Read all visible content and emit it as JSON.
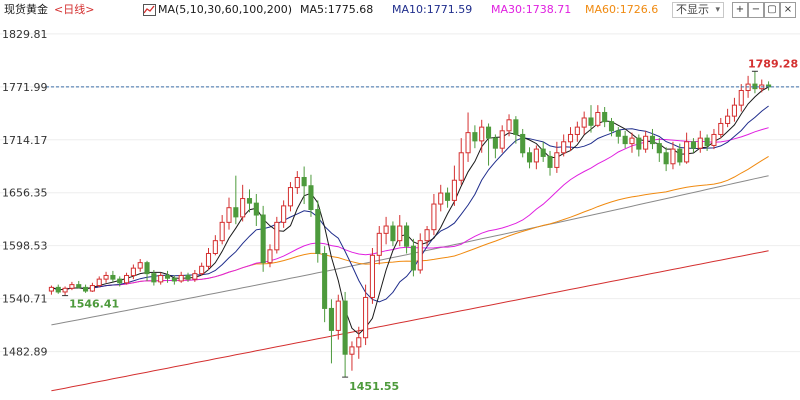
{
  "header": {
    "instrument": "现货黄金",
    "period": "<日线>",
    "ma_params": "MA(5,10,30,60,100,200)",
    "ma_values": [
      {
        "label": "MA5:1775.68",
        "color": "#1a1a1a"
      },
      {
        "label": "MA10:1771.59",
        "color": "#1f2d8c"
      },
      {
        "label": "MA30:1738.71",
        "color": "#e020e0"
      },
      {
        "label": "MA60:1726.6",
        "color": "#f08a10"
      }
    ],
    "hide_dropdown_label": "不显示",
    "hide_dropdown_arrow": "▾",
    "buttons": [
      "+",
      "−",
      "▢",
      "×"
    ]
  },
  "chart_data": {
    "type": "candlestick",
    "ylim": [
      1430,
      1845
    ],
    "y_ticks": [
      "1829.81",
      "1771.99",
      "1714.17",
      "1656.35",
      "1598.53",
      "1540.71",
      "1482.89"
    ],
    "current_price_line": 1771.99,
    "annotations": [
      {
        "text": "1789.28",
        "type": "high",
        "color": "#d43030"
      },
      {
        "text": "1546.41",
        "type": "low",
        "color": "#4d9a3c"
      },
      {
        "text": "1451.55",
        "type": "low",
        "color": "#4d9a3c"
      }
    ],
    "colors": {
      "up": "#d43030",
      "down": "#4d9a3c",
      "ma5": "#1a1a1a",
      "ma10": "#1f2d8c",
      "ma30": "#e020e0",
      "ma60": "#f08a10",
      "ma100": "#8a8a8a",
      "ma200": "#d43030"
    },
    "candles": [
      [
        1549,
        1553,
        1545,
        1555
      ],
      [
        1553,
        1548,
        1546,
        1556
      ],
      [
        1548,
        1552,
        1544,
        1554
      ],
      [
        1552,
        1556,
        1550,
        1559
      ],
      [
        1556,
        1553,
        1552,
        1560
      ],
      [
        1553,
        1549,
        1547,
        1556
      ],
      [
        1549,
        1555,
        1548,
        1558
      ],
      [
        1555,
        1562,
        1553,
        1565
      ],
      [
        1562,
        1566,
        1558,
        1570
      ],
      [
        1566,
        1562,
        1559,
        1571
      ],
      [
        1562,
        1558,
        1554,
        1565
      ],
      [
        1558,
        1566,
        1556,
        1569
      ],
      [
        1566,
        1574,
        1562,
        1578
      ],
      [
        1574,
        1580,
        1570,
        1584
      ],
      [
        1580,
        1568,
        1560,
        1582
      ],
      [
        1568,
        1559,
        1555,
        1572
      ],
      [
        1559,
        1566,
        1556,
        1569
      ],
      [
        1566,
        1563,
        1558,
        1571
      ],
      [
        1563,
        1560,
        1556,
        1566
      ],
      [
        1560,
        1566,
        1558,
        1570
      ],
      [
        1566,
        1562,
        1559,
        1569
      ],
      [
        1562,
        1568,
        1559,
        1572
      ],
      [
        1568,
        1576,
        1566,
        1580
      ],
      [
        1576,
        1590,
        1572,
        1596
      ],
      [
        1590,
        1604,
        1588,
        1610
      ],
      [
        1604,
        1624,
        1600,
        1632
      ],
      [
        1624,
        1640,
        1616,
        1651
      ],
      [
        1640,
        1630,
        1622,
        1675
      ],
      [
        1630,
        1650,
        1625,
        1665
      ],
      [
        1650,
        1645,
        1635,
        1660
      ],
      [
        1645,
        1632,
        1620,
        1655
      ],
      [
        1632,
        1580,
        1570,
        1642
      ],
      [
        1580,
        1594,
        1575,
        1600
      ],
      [
        1594,
        1624,
        1590,
        1630
      ],
      [
        1624,
        1642,
        1618,
        1648
      ],
      [
        1642,
        1662,
        1636,
        1668
      ],
      [
        1662,
        1673,
        1655,
        1680
      ],
      [
        1673,
        1664,
        1644,
        1685
      ],
      [
        1664,
        1638,
        1630,
        1676
      ],
      [
        1638,
        1590,
        1580,
        1648
      ],
      [
        1590,
        1530,
        1515,
        1598
      ],
      [
        1530,
        1506,
        1470,
        1540
      ],
      [
        1506,
        1538,
        1496,
        1545
      ],
      [
        1538,
        1480,
        1455,
        1548
      ],
      [
        1480,
        1488,
        1462,
        1494
      ],
      [
        1488,
        1498,
        1475,
        1510
      ],
      [
        1498,
        1542,
        1490,
        1556
      ],
      [
        1542,
        1588,
        1535,
        1596
      ],
      [
        1588,
        1612,
        1578,
        1620
      ],
      [
        1612,
        1620,
        1600,
        1630
      ],
      [
        1620,
        1604,
        1598,
        1625
      ],
      [
        1604,
        1620,
        1598,
        1632
      ],
      [
        1620,
        1598,
        1590,
        1624
      ],
      [
        1598,
        1572,
        1565,
        1606
      ],
      [
        1572,
        1604,
        1568,
        1612
      ],
      [
        1604,
        1616,
        1598,
        1620
      ],
      [
        1616,
        1644,
        1610,
        1655
      ],
      [
        1644,
        1656,
        1636,
        1665
      ],
      [
        1656,
        1648,
        1640,
        1662
      ],
      [
        1648,
        1670,
        1642,
        1686
      ],
      [
        1670,
        1700,
        1665,
        1716
      ],
      [
        1700,
        1722,
        1690,
        1744
      ],
      [
        1722,
        1713,
        1705,
        1730
      ],
      [
        1713,
        1728,
        1700,
        1736
      ],
      [
        1728,
        1716,
        1686,
        1732
      ],
      [
        1716,
        1705,
        1694,
        1720
      ],
      [
        1705,
        1724,
        1700,
        1730
      ],
      [
        1724,
        1736,
        1718,
        1742
      ],
      [
        1736,
        1720,
        1710,
        1740
      ],
      [
        1720,
        1700,
        1695,
        1726
      ],
      [
        1700,
        1690,
        1683,
        1706
      ],
      [
        1690,
        1704,
        1682,
        1708
      ],
      [
        1704,
        1696,
        1690,
        1712
      ],
      [
        1696,
        1684,
        1675,
        1702
      ],
      [
        1684,
        1700,
        1678,
        1712
      ],
      [
        1700,
        1712,
        1696,
        1720
      ],
      [
        1712,
        1720,
        1702,
        1728
      ],
      [
        1720,
        1728,
        1712,
        1734
      ],
      [
        1728,
        1738,
        1720,
        1745
      ],
      [
        1738,
        1730,
        1722,
        1752
      ],
      [
        1730,
        1744,
        1728,
        1752
      ],
      [
        1744,
        1734,
        1728,
        1750
      ],
      [
        1734,
        1724,
        1718,
        1738
      ],
      [
        1724,
        1718,
        1710,
        1728
      ],
      [
        1718,
        1710,
        1705,
        1724
      ],
      [
        1710,
        1716,
        1700,
        1722
      ],
      [
        1716,
        1704,
        1696,
        1720
      ],
      [
        1704,
        1718,
        1700,
        1724
      ],
      [
        1718,
        1710,
        1704,
        1726
      ],
      [
        1710,
        1700,
        1690,
        1716
      ],
      [
        1700,
        1688,
        1680,
        1706
      ],
      [
        1688,
        1704,
        1682,
        1712
      ],
      [
        1704,
        1690,
        1686,
        1710
      ],
      [
        1690,
        1712,
        1688,
        1722
      ],
      [
        1712,
        1705,
        1700,
        1716
      ],
      [
        1705,
        1716,
        1700,
        1724
      ],
      [
        1716,
        1708,
        1702,
        1720
      ],
      [
        1708,
        1720,
        1704,
        1726
      ],
      [
        1720,
        1732,
        1716,
        1738
      ],
      [
        1732,
        1740,
        1728,
        1748
      ],
      [
        1740,
        1752,
        1734,
        1760
      ],
      [
        1752,
        1768,
        1745,
        1775
      ],
      [
        1768,
        1775,
        1760,
        1784
      ],
      [
        1775,
        1770,
        1765,
        1789
      ],
      [
        1770,
        1774,
        1766,
        1780
      ],
      [
        1774,
        1772,
        1768,
        1778
      ]
    ]
  }
}
